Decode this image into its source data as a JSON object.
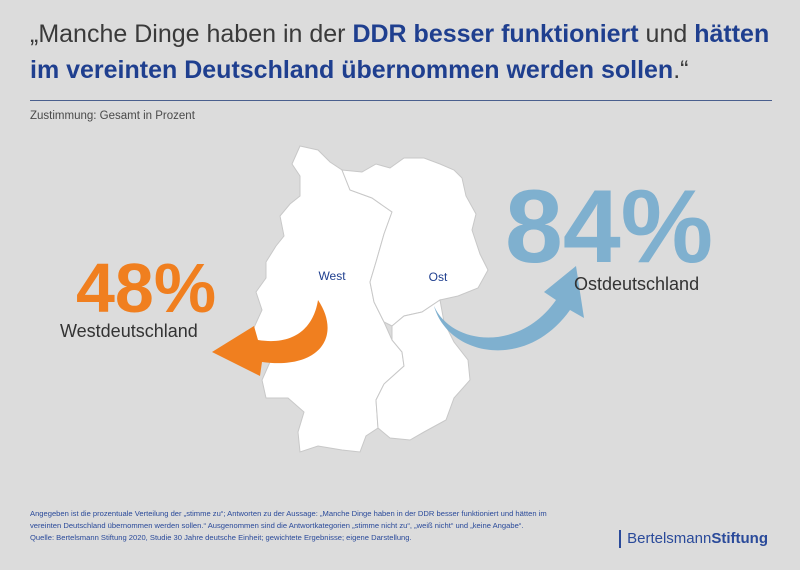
{
  "headline": {
    "open_quote": "„",
    "part1": "Manche Dinge haben in der ",
    "em1": "DDR besser funktioniert",
    "part2": " und ",
    "em2": "hätten im vereinten Deutschland übernommen werden sollen",
    "close": ".“"
  },
  "subtitle": "Zustimmung: Gesamt in Prozent",
  "chart_data": {
    "type": "bar",
    "title": "„Manche Dinge haben in der DDR besser funktioniert und hätten im vereinten Deutschland übernommen werden sollen.“",
    "subtitle": "Zustimmung: Gesamt in Prozent",
    "categories": [
      "Westdeutschland",
      "Ostdeutschland"
    ],
    "values": [
      48,
      84
    ],
    "value_labels": [
      "48%",
      "84%"
    ],
    "map_labels": [
      "West",
      "Ost"
    ],
    "colors": {
      "west": "#f07f1f",
      "ost": "#7fb0cf"
    },
    "unit": "%"
  },
  "footer": {
    "line1": "Angegeben ist die prozentuale Verteilung der „stimme zu“; Antworten zu der Aussage: „Manche Dinge haben in der DDR besser funktioniert und hätten im",
    "line2": "vereinten Deutschland übernommen werden sollen.“ Ausgenommen sind die Antwortkategorien „stimme nicht zu“, „weiß nicht“ und „keine Angabe“.",
    "line3": "Quelle: Bertelsmann Stiftung 2020, Studie 30 Jahre deutsche Einheit; gewichtete Ergebnisse; eigene Darstellung."
  },
  "brand": {
    "part1": "Bertelsmann",
    "part2": "Stiftung"
  }
}
